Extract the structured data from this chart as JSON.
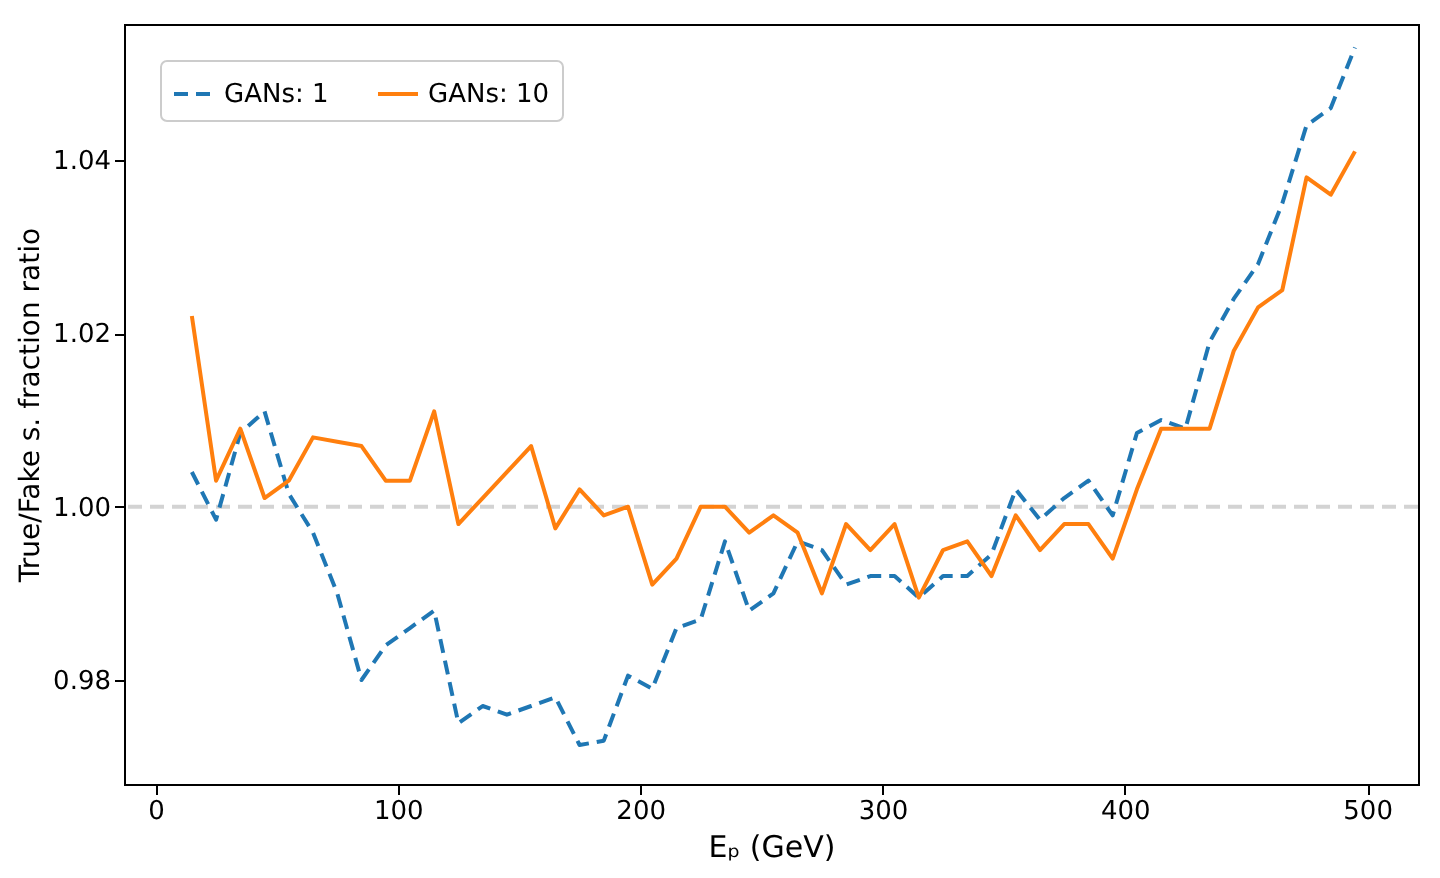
{
  "chart_data": {
    "type": "line",
    "xlabel": "Eₚ (GeV)",
    "ylabel": "True/Fake s. fraction ratio",
    "x": [
      15,
      25,
      35,
      45,
      55,
      65,
      75,
      85,
      95,
      105,
      115,
      125,
      135,
      145,
      155,
      165,
      175,
      185,
      195,
      205,
      215,
      225,
      235,
      245,
      255,
      265,
      275,
      285,
      295,
      305,
      315,
      325,
      335,
      345,
      355,
      365,
      375,
      385,
      395,
      405,
      415,
      425,
      435,
      445,
      455,
      465,
      475,
      485,
      495
    ],
    "series": [
      {
        "name": "GANs: 1",
        "color": "#1f77b4",
        "line_style": "dashed",
        "values": [
          1.004,
          0.9985,
          1.0085,
          1.011,
          1.0015,
          0.997,
          0.99,
          0.98,
          0.984,
          0.986,
          0.988,
          0.975,
          0.977,
          0.976,
          0.977,
          0.978,
          0.9725,
          0.973,
          0.9805,
          0.979,
          0.986,
          0.987,
          0.996,
          0.988,
          0.99,
          0.996,
          0.995,
          0.991,
          0.992,
          0.992,
          0.9895,
          0.992,
          0.992,
          0.9945,
          1.002,
          0.9985,
          1.001,
          1.003,
          0.999,
          1.0085,
          1.01,
          1.009,
          1.019,
          1.024,
          1.028,
          1.035,
          1.044,
          1.046,
          1.053
        ]
      },
      {
        "name": "GANs: 10",
        "color": "#ff7f0e",
        "line_style": "solid",
        "values": [
          1.022,
          1.003,
          1.009,
          1.001,
          1.003,
          1.008,
          1.0075,
          1.007,
          1.003,
          1.003,
          1.011,
          0.998,
          1.001,
          1.004,
          1.007,
          0.9975,
          1.002,
          0.999,
          1.0,
          0.991,
          0.994,
          1.0,
          1.0,
          0.997,
          0.999,
          0.997,
          0.99,
          0.998,
          0.995,
          0.998,
          0.9895,
          0.995,
          0.996,
          0.992,
          0.999,
          0.995,
          0.998,
          0.998,
          0.994,
          1.002,
          1.009,
          1.009,
          1.009,
          1.018,
          1.023,
          1.025,
          1.038,
          1.036,
          1.041
        ]
      }
    ],
    "xlim": [
      -13,
      521
    ],
    "xticks": [
      0,
      100,
      200,
      300,
      400,
      500
    ],
    "ylim": [
      0.968,
      1.0557
    ],
    "yticks": [
      {
        "value": 0.98,
        "label": "0.98"
      },
      {
        "value": 1.0,
        "label": "1.00"
      },
      {
        "value": 1.02,
        "label": "1.02"
      },
      {
        "value": 1.04,
        "label": "1.04"
      }
    ],
    "ref_lines": [
      {
        "axis": "y",
        "value": 1.0,
        "color": "#d3d3d3",
        "line_style": "dashed"
      }
    ],
    "legend": "top left",
    "grid": false
  }
}
